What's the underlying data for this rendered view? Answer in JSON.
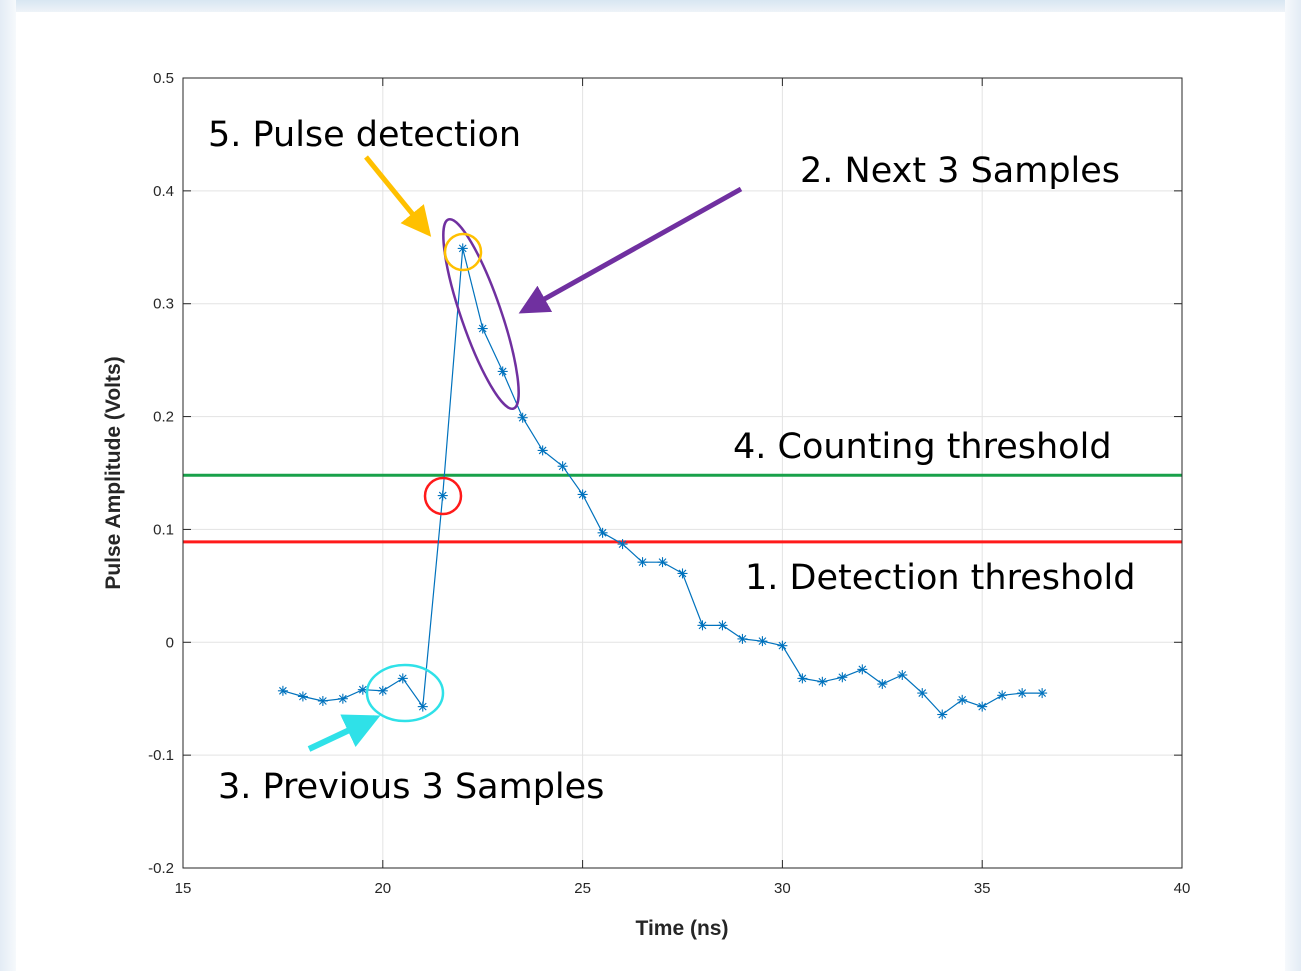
{
  "chart_data": {
    "type": "line",
    "xlabel": "Time (ns)",
    "ylabel": "Pulse Amplitude (Volts)",
    "xlim": [
      15,
      40
    ],
    "ylim": [
      -0.2,
      0.5
    ],
    "grid": true,
    "x_ticks": [
      "15",
      "20",
      "25",
      "30",
      "35",
      "40"
    ],
    "y_ticks": [
      "-0.2",
      "-0.1",
      "0",
      "0.1",
      "0.2",
      "0.3",
      "0.4",
      "0.5"
    ],
    "series": [
      {
        "marker": "*",
        "color": "#0072BD",
        "x": [
          17.5,
          18.0,
          18.5,
          19.0,
          19.5,
          20.0,
          20.5,
          21.0,
          21.5,
          22.0,
          22.5,
          23.0,
          23.5,
          24.0,
          24.5,
          25.0,
          25.5,
          26.0,
          26.5,
          27.0,
          27.5,
          28.0,
          28.5,
          29.0,
          29.5,
          30.0,
          30.5,
          31.0,
          31.5,
          32.0,
          32.5,
          33.0,
          33.5,
          34.0,
          34.5,
          35.0,
          35.5,
          36.0,
          36.5
        ],
        "y": [
          -0.043,
          -0.048,
          -0.052,
          -0.05,
          -0.042,
          -0.043,
          -0.032,
          -0.057,
          0.13,
          0.349,
          0.278,
          0.24,
          0.199,
          0.17,
          0.156,
          0.131,
          0.097,
          0.087,
          0.071,
          0.071,
          0.061,
          0.015,
          0.015,
          0.003,
          0.001,
          -0.003,
          -0.032,
          -0.035,
          -0.031,
          -0.024,
          -0.037,
          -0.029,
          -0.045,
          -0.064,
          -0.051,
          -0.057,
          -0.047,
          -0.045,
          -0.045
        ]
      }
    ],
    "thresholds": [
      {
        "value": 0.148,
        "color": "#18A14A"
      },
      {
        "value": 0.089,
        "color": "#FF1A1A"
      }
    ],
    "annotations": [
      {
        "text": "5. Pulse detection",
        "color": "#FFC000"
      },
      {
        "text": "2. Next 3 Samples",
        "color": "#7030A0"
      },
      {
        "text": "4. Counting threshold",
        "color": "#18A14A"
      },
      {
        "text": "1. Detection threshold",
        "color": "#FF1A1A"
      },
      {
        "text": "3. Previous 3 Samples",
        "color": "#2FE1E8"
      }
    ]
  }
}
